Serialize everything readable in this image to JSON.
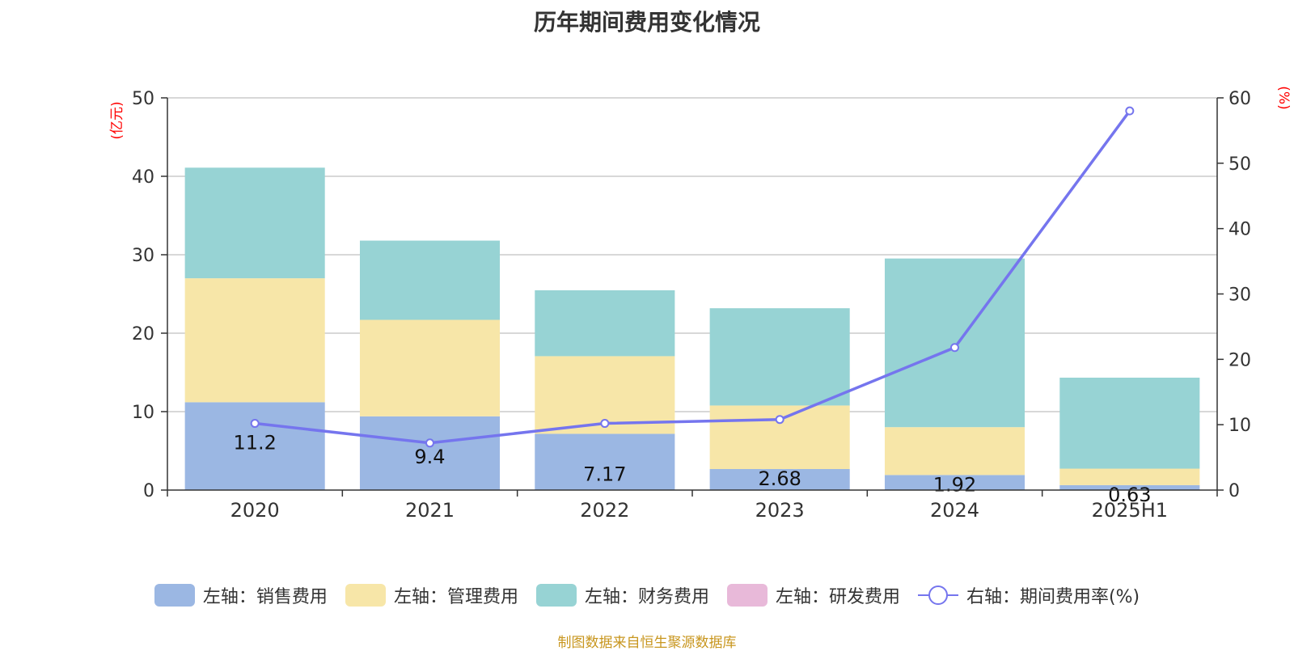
{
  "chart_data": {
    "type": "bar",
    "title": "历年期间费用变化情况",
    "categories": [
      "2020",
      "2021",
      "2022",
      "2023",
      "2024",
      "2025H1"
    ],
    "series": [
      {
        "name": "左轴：销售费用",
        "axis": "left",
        "color": "#9bb7e3",
        "values": [
          11.2,
          9.4,
          7.17,
          2.68,
          1.92,
          0.63
        ]
      },
      {
        "name": "左轴：管理费用",
        "axis": "left",
        "color": "#f7e6a8",
        "values": [
          15.8,
          12.3,
          9.9,
          8.1,
          6.1,
          2.1
        ]
      },
      {
        "name": "左轴：财务费用",
        "axis": "left",
        "color": "#97d3d4",
        "values": [
          14.1,
          10.1,
          8.4,
          12.4,
          21.5,
          11.6
        ]
      },
      {
        "name": "左轴：研发费用",
        "axis": "left",
        "color": "#e8b9d9",
        "values": [
          0,
          0,
          0,
          0,
          0,
          0
        ]
      },
      {
        "name": "右轴：期间费用率(%)",
        "axis": "right",
        "type": "line",
        "color": "#7575ee",
        "values": [
          10.2,
          7.2,
          10.2,
          10.8,
          21.8,
          58
        ]
      }
    ],
    "data_labels": [
      "11.2",
      "9.4",
      "7.17",
      "2.68",
      "1.92",
      "0.63"
    ],
    "y_left": {
      "label": "(亿元)",
      "ylim": [
        0,
        50
      ],
      "ticks": [
        "0",
        "10",
        "20",
        "30",
        "40",
        "50"
      ]
    },
    "y_right": {
      "label": "(%)",
      "ylim": [
        0,
        60
      ],
      "ticks": [
        "0",
        "10",
        "20",
        "30",
        "40",
        "50",
        "60"
      ]
    },
    "grid": true,
    "legend_position": "bottom"
  },
  "source_note": "制图数据来自恒生聚源数据库",
  "colors": {
    "axis_label": "#ff0000",
    "source": "#c8961e",
    "grid": "#cccccc",
    "text": "#333333"
  }
}
